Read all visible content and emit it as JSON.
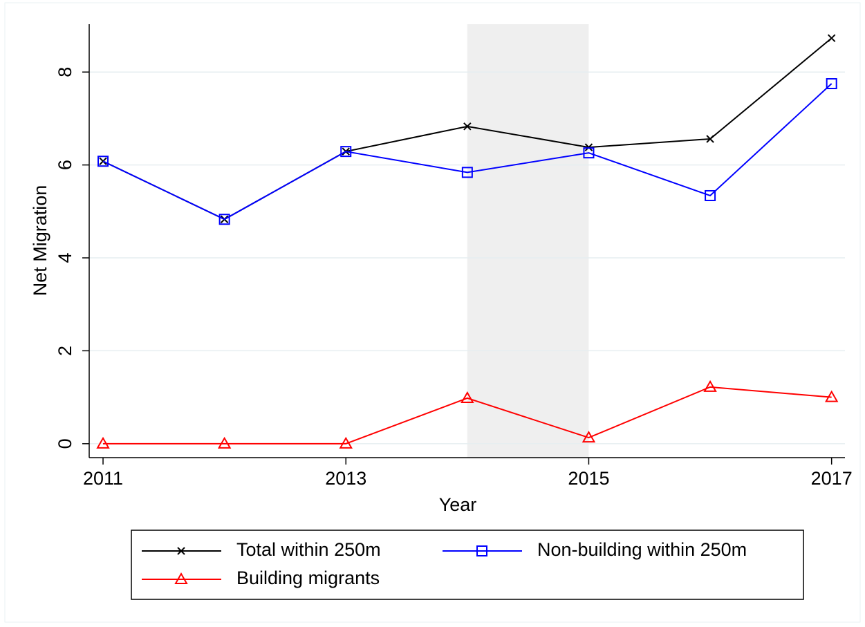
{
  "chart_data": {
    "type": "line",
    "x_label": "Year",
    "y_label": "Net Migration",
    "x": [
      2011,
      2012,
      2013,
      2014,
      2015,
      2016,
      2017
    ],
    "series": [
      {
        "name": "Total within 250m",
        "color": "#000000",
        "marker": "x",
        "values": [
          6.08,
          4.83,
          6.29,
          6.83,
          6.38,
          6.56,
          8.73
        ]
      },
      {
        "name": "Non-building within 250m",
        "color": "#0000ff",
        "marker": "square",
        "values": [
          6.08,
          4.83,
          6.29,
          5.84,
          6.26,
          5.34,
          7.75
        ]
      },
      {
        "name": "Building migrants",
        "color": "#ff0000",
        "marker": "triangle",
        "values": [
          0,
          0,
          0,
          0.98,
          0.13,
          1.22,
          1.0
        ]
      }
    ],
    "xlim": [
      2010.886,
      2017.11
    ],
    "xticks": [
      2011,
      2013,
      2015,
      2017
    ],
    "ylim": [
      -0.3,
      9.03
    ],
    "yticks": [
      0,
      2,
      4,
      6,
      8
    ],
    "shaded_region": [
      2014,
      2015
    ],
    "grid": true,
    "legend_position": "bottom"
  }
}
